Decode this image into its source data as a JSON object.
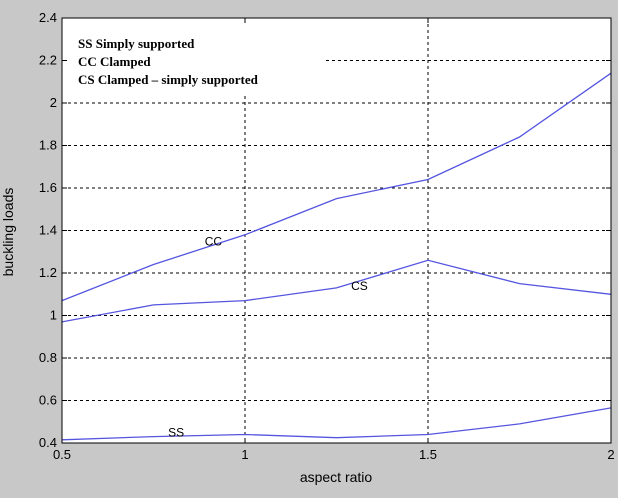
{
  "chart_data": {
    "type": "line",
    "xlabel": "aspect ratio",
    "ylabel": "buckling loads",
    "xlim": [
      0.5,
      2
    ],
    "ylim": [
      0.4,
      2.4
    ],
    "xticks": [
      "0.5",
      "1",
      "1.5",
      "2"
    ],
    "yticks": [
      "0.4",
      "0.6",
      "0.8",
      "1",
      "1.2",
      "1.4",
      "1.6",
      "1.8",
      "2",
      "2.2",
      "2.4"
    ],
    "grid": "dashed",
    "series_color": "#5555e0",
    "legend_text": [
      "SS Simply supported",
      "CC Clamped",
      "CS Clamped – simply supported"
    ],
    "series": [
      {
        "name": "CC",
        "x": [
          0.5,
          0.75,
          1.0,
          1.25,
          1.5,
          1.75,
          2.0
        ],
        "y": [
          1.07,
          1.24,
          1.38,
          1.55,
          1.64,
          1.84,
          2.14
        ]
      },
      {
        "name": "CS",
        "x": [
          0.5,
          0.75,
          1.0,
          1.25,
          1.5,
          1.75,
          2.0
        ],
        "y": [
          0.97,
          1.05,
          1.07,
          1.13,
          1.26,
          1.15,
          1.1
        ]
      },
      {
        "name": "SS",
        "x": [
          0.5,
          0.75,
          1.0,
          1.25,
          1.5,
          1.75,
          2.0
        ],
        "y": [
          0.415,
          0.43,
          0.44,
          0.425,
          0.44,
          0.49,
          0.565
        ]
      }
    ],
    "annotations": [
      {
        "text": "CC",
        "x": 0.89,
        "y": 1.33
      },
      {
        "text": "CS",
        "x": 1.29,
        "y": 1.12
      },
      {
        "text": "SS",
        "x": 0.79,
        "y": 0.43
      }
    ]
  }
}
